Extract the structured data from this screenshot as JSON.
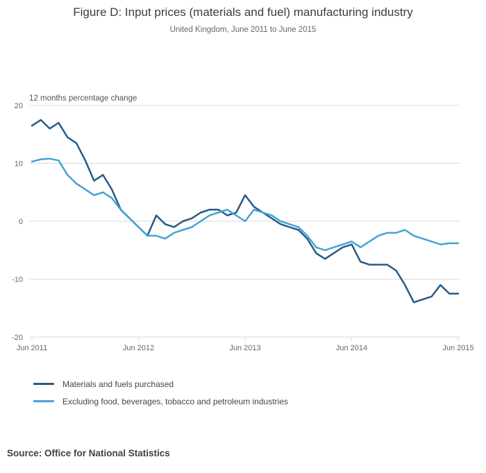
{
  "chart": {
    "source": "Source: Office for National Statistics"
  },
  "chart_data": {
    "type": "line",
    "title": "Figure D: Input prices (materials and fuel) manufacturing industry",
    "subtitle": "United Kingdom, June 2011 to June 2015",
    "ylabel": "12 months percentage change",
    "xlabel": "",
    "ylim": [
      -20,
      20
    ],
    "yticks": [
      20,
      10,
      0,
      -10,
      -20
    ],
    "grid": "horizontal",
    "legend_position": "bottom-left",
    "n_points": 49,
    "x_range": [
      "Jun 2011",
      "Jun 2015"
    ],
    "x_unit": "month",
    "xticks": [
      {
        "pos": 0,
        "label": "Jun 2011"
      },
      {
        "pos": 12,
        "label": "Jun 2012"
      },
      {
        "pos": 24,
        "label": "Jun 2013"
      },
      {
        "pos": 36,
        "label": "Jun 2014"
      },
      {
        "pos": 48,
        "label": "Jun 2015"
      }
    ],
    "colors": {
      "grid": "#d9d9d9",
      "axis_text": "#666666"
    },
    "series": [
      {
        "name": "Materials and fuels purchased",
        "color": "#265a87",
        "values": [
          16.5,
          17.5,
          16,
          17,
          14.5,
          13.5,
          10.5,
          7,
          8,
          5.5,
          2,
          0.5,
          -1,
          -2.5,
          1,
          -0.5,
          -1,
          0,
          0.5,
          1.5,
          2,
          2,
          1,
          1.5,
          4.5,
          2.5,
          1.5,
          0.5,
          -0.5,
          -1,
          -1.5,
          -3,
          -5.5,
          -6.5,
          -5.5,
          -4.5,
          -4,
          -7,
          -7.5,
          -7.5,
          -7.5,
          -8.5,
          -11,
          -14,
          -13.5,
          -13,
          -11,
          -12.5,
          -12.5
        ]
      },
      {
        "name": "Excluding food, beverages, tobacco and petroleum industries",
        "color": "#44a3d5",
        "values": [
          10.3,
          10.7,
          10.8,
          10.5,
          8,
          6.5,
          5.5,
          4.5,
          5,
          4,
          2,
          0.5,
          -1,
          -2.5,
          -2.5,
          -3,
          -2,
          -1.5,
          -1,
          0,
          1,
          1.5,
          2,
          1,
          0,
          2,
          1.5,
          1,
          0,
          -0.5,
          -1,
          -2.5,
          -4.5,
          -5,
          -4.5,
          -4,
          -3.5,
          -4.5,
          -3.5,
          -2.5,
          -2,
          -2,
          -1.5,
          -2.5,
          -3,
          -3.5,
          -4,
          -3.8,
          -3.8
        ]
      }
    ]
  }
}
